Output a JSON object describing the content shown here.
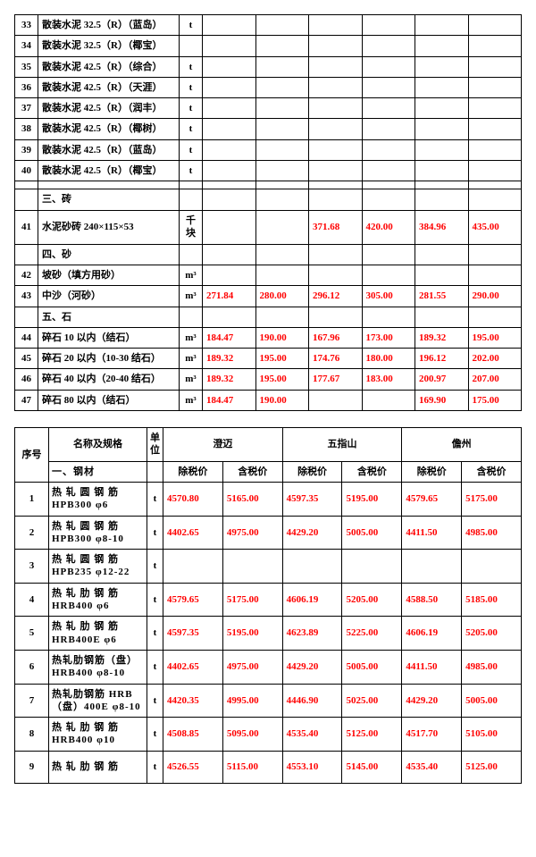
{
  "table1": {
    "rows": [
      {
        "n": "33",
        "name": "散装水泥 32.5（R）（蓝岛）",
        "unit": "t",
        "d": [
          "",
          "",
          "",
          "",
          "",
          ""
        ]
      },
      {
        "n": "34",
        "name": "散装水泥 32.5（R）（椰宝）",
        "unit": "",
        "d": [
          "",
          "",
          "",
          "",
          "",
          ""
        ]
      },
      {
        "n": "35",
        "name": "散装水泥 42.5（R）（综合）",
        "unit": "t",
        "d": [
          "",
          "",
          "",
          "",
          "",
          ""
        ]
      },
      {
        "n": "36",
        "name": "散装水泥 42.5（R）（天涯）",
        "unit": "t",
        "d": [
          "",
          "",
          "",
          "",
          "",
          ""
        ]
      },
      {
        "n": "37",
        "name": "散装水泥 42.5（R）（润丰）",
        "unit": "t",
        "d": [
          "",
          "",
          "",
          "",
          "",
          ""
        ]
      },
      {
        "n": "38",
        "name": "散装水泥 42.5（R）（椰树）",
        "unit": "t",
        "d": [
          "",
          "",
          "",
          "",
          "",
          ""
        ]
      },
      {
        "n": "39",
        "name": "散装水泥 42.5（R）（蓝岛）",
        "unit": "t",
        "d": [
          "",
          "",
          "",
          "",
          "",
          ""
        ]
      },
      {
        "n": "40",
        "name": "散装水泥 42.5（R）（椰宝）",
        "unit": "t",
        "d": [
          "",
          "",
          "",
          "",
          "",
          ""
        ]
      },
      {
        "n": "",
        "name": "",
        "unit": "",
        "d": [
          "",
          "",
          "",
          "",
          "",
          ""
        ]
      },
      {
        "n": "",
        "name": "三、砖",
        "unit": "",
        "d": [
          "",
          "",
          "",
          "",
          "",
          ""
        ],
        "section": true
      },
      {
        "n": "41",
        "name": "水泥砂砖 240×115×53",
        "unit": "千块",
        "d": [
          "",
          "",
          "371.68",
          "420.00",
          "384.96",
          "435.00"
        ],
        "tall": true
      },
      {
        "n": "",
        "name": "四、砂",
        "unit": "",
        "d": [
          "",
          "",
          "",
          "",
          "",
          ""
        ],
        "section": true
      },
      {
        "n": "42",
        "name": "坡砂（填方用砂）",
        "unit": "m³",
        "d": [
          "",
          "",
          "",
          "",
          "",
          ""
        ]
      },
      {
        "n": "43",
        "name": "中沙（河砂）",
        "unit": "m³",
        "d": [
          "271.84",
          "280.00",
          "296.12",
          "305.00",
          "281.55",
          "290.00"
        ]
      },
      {
        "n": "",
        "name": "五、石",
        "unit": "",
        "d": [
          "",
          "",
          "",
          "",
          "",
          ""
        ],
        "section": true
      },
      {
        "n": "44",
        "name": "碎石 10 以内（结石）",
        "unit": "m³",
        "d": [
          "184.47",
          "190.00",
          "167.96",
          "173.00",
          "189.32",
          "195.00"
        ]
      },
      {
        "n": "45",
        "name": "碎石 20 以内（10-30 结石）",
        "unit": "m³",
        "d": [
          "189.32",
          "195.00",
          "174.76",
          "180.00",
          "196.12",
          "202.00"
        ]
      },
      {
        "n": "46",
        "name": "碎石 40 以内（20-40 结石）",
        "unit": "m³",
        "d": [
          "189.32",
          "195.00",
          "177.67",
          "183.00",
          "200.97",
          "207.00"
        ]
      },
      {
        "n": "47",
        "name": "碎石 80 以内（结石）",
        "unit": "m³",
        "d": [
          "184.47",
          "190.00",
          "",
          "",
          "169.90",
          "175.00"
        ]
      }
    ]
  },
  "table2": {
    "head": {
      "seq": "序号",
      "name": "名称及规格",
      "unit": "单位",
      "regions": [
        "澄迈",
        "五指山",
        "儋州"
      ],
      "sub": [
        "除税价",
        "含税价",
        "除税价",
        "含税价",
        "除税价",
        "含税价"
      ]
    },
    "section": "一、钢材",
    "rows": [
      {
        "n": "1",
        "name": "热 轧 圆 钢 筋 HPB300 φ6",
        "unit": "t",
        "d": [
          "4570.80",
          "5165.00",
          "4597.35",
          "5195.00",
          "4579.65",
          "5175.00"
        ]
      },
      {
        "n": "2",
        "name": "热 轧 圆 钢 筋 HPB300 φ8-10",
        "unit": "t",
        "d": [
          "4402.65",
          "4975.00",
          "4429.20",
          "5005.00",
          "4411.50",
          "4985.00"
        ]
      },
      {
        "n": "3",
        "name": "热 轧 圆 钢 筋 HPB235 φ12-22",
        "unit": "t",
        "d": [
          "",
          "",
          "",
          "",
          "",
          ""
        ]
      },
      {
        "n": "4",
        "name": "热 轧 肋 钢 筋 HRB400 φ6",
        "unit": "t",
        "d": [
          "4579.65",
          "5175.00",
          "4606.19",
          "5205.00",
          "4588.50",
          "5185.00"
        ]
      },
      {
        "n": "5",
        "name": "热 轧 肋 钢 筋 HRB400E φ6",
        "unit": "t",
        "d": [
          "4597.35",
          "5195.00",
          "4623.89",
          "5225.00",
          "4606.19",
          "5205.00"
        ]
      },
      {
        "n": "6",
        "name": "热轧肋钢筋（盘）HRB400 φ8-10",
        "unit": "t",
        "d": [
          "4402.65",
          "4975.00",
          "4429.20",
          "5005.00",
          "4411.50",
          "4985.00"
        ]
      },
      {
        "n": "7",
        "name": "热轧肋钢筋 HRB（盘）400E φ8-10",
        "unit": "t",
        "d": [
          "4420.35",
          "4995.00",
          "4446.90",
          "5025.00",
          "4429.20",
          "5005.00"
        ]
      },
      {
        "n": "8",
        "name": "热 轧 肋 钢 筋 HRB400 φ10",
        "unit": "t",
        "d": [
          "4508.85",
          "5095.00",
          "4535.40",
          "5125.00",
          "4517.70",
          "5105.00"
        ]
      },
      {
        "n": "9",
        "name": "热 轧 肋 钢 筋",
        "unit": "t",
        "d": [
          "4526.55",
          "5115.00",
          "4553.10",
          "5145.00",
          "4535.40",
          "5125.00"
        ]
      }
    ]
  }
}
